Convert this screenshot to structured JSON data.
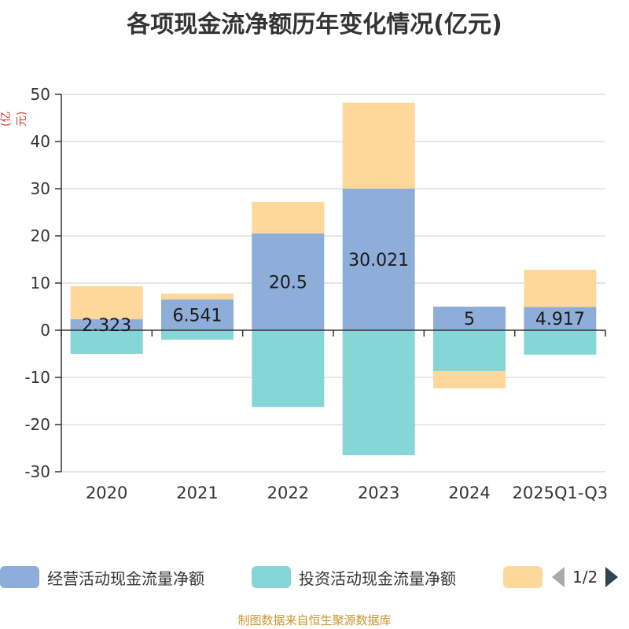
{
  "chart_data": {
    "type": "bar",
    "stacked": true,
    "title": "各项现金流净额历年变化情况(亿元)",
    "ylabel": "(亿元)",
    "ylim": [
      -30,
      50
    ],
    "yticks": [
      50,
      40,
      30,
      20,
      10,
      0,
      -10,
      -20,
      -30
    ],
    "categories": [
      "2020",
      "2021",
      "2022",
      "2023",
      "2024",
      "2025Q1-Q3"
    ],
    "series": [
      {
        "name": "经营活动现金流量净额",
        "color": "#8eadd9",
        "values": [
          2.323,
          6.541,
          20.5,
          30.021,
          5,
          4.917
        ]
      },
      {
        "name": "投资活动现金流量净额",
        "color": "#86d5d7",
        "values": [
          -5,
          -2,
          -16.3,
          -26.5,
          -8.7,
          -5.2
        ]
      },
      {
        "name": "",
        "color": "#fed89a",
        "values": [
          7,
          1.2,
          6.7,
          18.2,
          -3.6,
          7.9
        ]
      }
    ],
    "data_labels": [
      "2.323",
      "6.541",
      "20.5",
      "30.021",
      "5",
      "4.917"
    ],
    "legend_position": "bottom"
  },
  "legend": {
    "pager_text": "1/2",
    "prev_icon": "triangle-left-icon",
    "next_icon": "triangle-right-icon"
  },
  "source_text": "制图数据来自恒生聚源数据库"
}
